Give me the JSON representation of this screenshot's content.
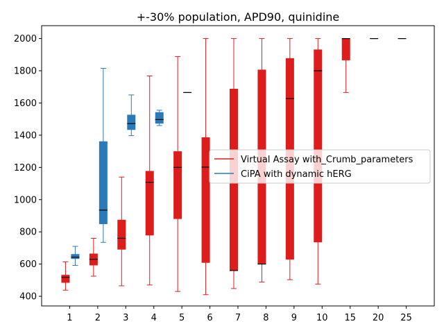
{
  "chart_data": {
    "type": "box",
    "title": "+-30% population, APD90, quinidine",
    "xlabel": "",
    "ylabel": "",
    "categories": [
      "1",
      "2",
      "3",
      "4",
      "5",
      "6",
      "7",
      "8",
      "9",
      "10",
      "15",
      "20",
      "25"
    ],
    "ylim": [
      340,
      2080
    ],
    "yticks": [
      400,
      600,
      800,
      1000,
      1200,
      1400,
      1600,
      1800,
      2000
    ],
    "grid": false,
    "legend_position": "center-right",
    "series": [
      {
        "name": "Virtual Assay with_Crumb_parameters",
        "color": "#dd1c1c",
        "boxes": [
          {
            "cat": "1",
            "whislo": 438,
            "q1": 484,
            "med": 518,
            "q3": 533,
            "whishi": 614
          },
          {
            "cat": "2",
            "whislo": 525,
            "q1": 592,
            "med": 630,
            "q3": 665,
            "whishi": 760
          },
          {
            "cat": "3",
            "whislo": 465,
            "q1": 690,
            "med": 760,
            "q3": 875,
            "whishi": 1140
          },
          {
            "cat": "4",
            "whislo": 470,
            "q1": 778,
            "med": 1108,
            "q3": 1178,
            "whishi": 1768
          },
          {
            "cat": "5",
            "whislo": 430,
            "q1": 880,
            "med": 1200,
            "q3": 1300,
            "whishi": 1888
          },
          {
            "cat": "6",
            "whislo": 410,
            "q1": 608,
            "med": 1202,
            "q3": 1387,
            "whishi": 2000
          },
          {
            "cat": "7",
            "whislo": 448,
            "q1": 560,
            "med": 560,
            "q3": 1688,
            "whishi": 2000
          },
          {
            "cat": "8",
            "whislo": 488,
            "q1": 600,
            "med": 600,
            "q3": 1807,
            "whishi": 2000
          },
          {
            "cat": "9",
            "whislo": 503,
            "q1": 628,
            "med": 1628,
            "q3": 1878,
            "whishi": 2000
          },
          {
            "cat": "10",
            "whislo": 475,
            "q1": 735,
            "med": 1800,
            "q3": 1932,
            "whishi": 2000
          },
          {
            "cat": "15",
            "whislo": 1665,
            "q1": 1865,
            "med": 2000,
            "q3": 2000,
            "whishi": 2000
          },
          {
            "cat": "20",
            "whislo": 2000,
            "q1": 2000,
            "med": 2000,
            "q3": 2000,
            "whishi": 2000
          },
          {
            "cat": "25",
            "whislo": 2000,
            "q1": 2000,
            "med": 2000,
            "q3": 2000,
            "whishi": 2000
          }
        ]
      },
      {
        "name": "CiPA with dynamic hERG",
        "color": "#2a7ab9",
        "boxes": [
          {
            "cat": "1",
            "whislo": 592,
            "q1": 632,
            "med": 643,
            "q3": 662,
            "whishi": 710
          },
          {
            "cat": "2",
            "whislo": 735,
            "q1": 848,
            "med": 935,
            "q3": 1362,
            "whishi": 1815
          },
          {
            "cat": "3",
            "whislo": 1397,
            "q1": 1433,
            "med": 1472,
            "q3": 1527,
            "whishi": 1650
          },
          {
            "cat": "4",
            "whislo": 1460,
            "q1": 1472,
            "med": 1497,
            "q3": 1543,
            "whishi": 1555
          },
          {
            "cat": "5",
            "whislo": 1665,
            "q1": 1665,
            "med": 1665,
            "q3": 1665,
            "whishi": 1665
          }
        ]
      }
    ]
  }
}
